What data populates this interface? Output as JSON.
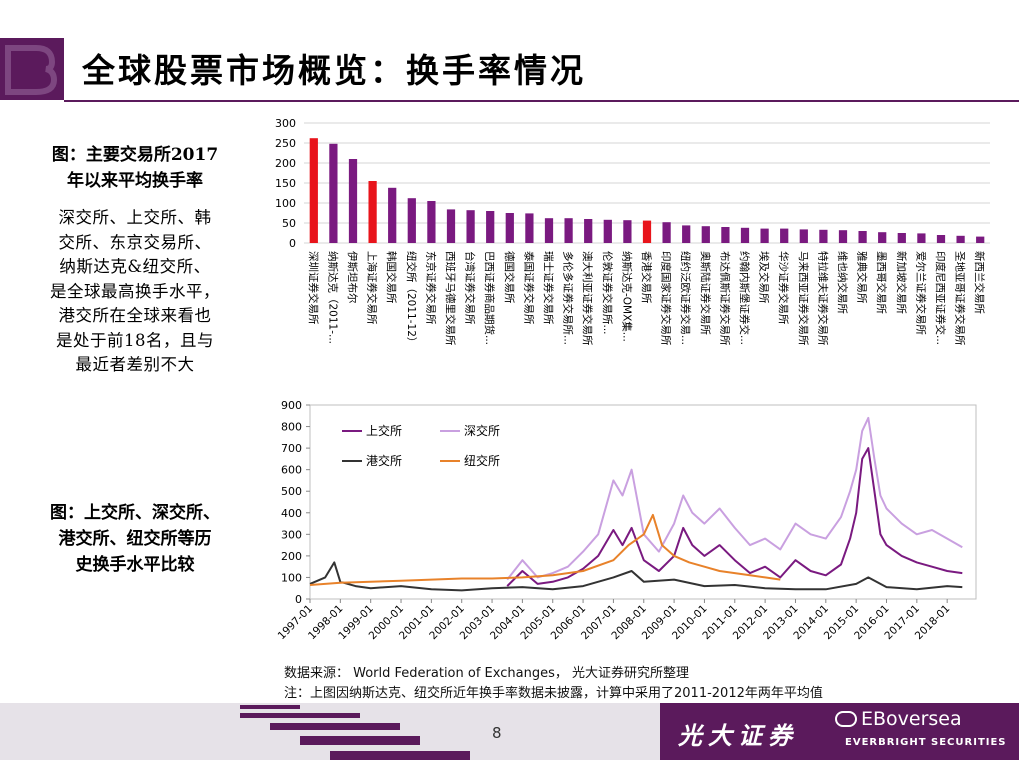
{
  "title": "全球股票市场概览：换手率情况",
  "caption1": [
    "图：主要交易所2017",
    "年以来平均换手率"
  ],
  "description": [
    "深交所、上交所、韩",
    "交所、东京交易所、",
    "纳斯达克&纽交所、",
    "是全球最高换手水平，",
    "港交所在全球来看也",
    "是处于前18名，且与",
    "最近者差别不大"
  ],
  "caption2": [
    "图：上交所、深交所、",
    "港交所、纽交所等历",
    "史换手水平比较"
  ],
  "source_text": "数据来源： World Federation of Exchanges， 光大证券研究所整理",
  "note_text": "注：上图因纳斯达克、纽交所近年换手率数据未披露，计算中采用了2011-2012年两年平均值",
  "page_number": "8",
  "brand_cn": "光大证券",
  "brand_en": "EVERBRIGHT SECURITIES",
  "wechat_label": "EBoversea",
  "colors": {
    "purple": "#7a1a80",
    "red": "#e8141b",
    "lilac": "#c9a0e0",
    "black": "#333333",
    "orange": "#e8822a",
    "brand": "#5b1a5c"
  },
  "chart_data": [
    {
      "type": "bar",
      "ylim": [
        0,
        300
      ],
      "yticks": [
        0,
        50,
        100,
        150,
        200,
        250,
        300
      ],
      "categories": [
        "深圳证券交易所",
        "纳斯达克（2011-...",
        "伊斯坦布尔",
        "上海证券交易所",
        "韩国交易所",
        "纽交所（2011-12）",
        "东京证券交易所",
        "西班牙马德里交易所",
        "台湾证券交易所",
        "巴西证券商品期货...",
        "德国交易所",
        "泰国证券交易所",
        "瑞士证券交易所",
        "多伦多证券交易所...",
        "澳大利亚证券交易所",
        "伦敦证券交易所...",
        "纳斯达克-OMX集...",
        "香港交易所",
        "印度国家证券交易所",
        "纽约泛欧证券交易...",
        "奥斯陆证券交易所",
        "布达佩斯证券交易所",
        "约翰内斯堡证券交...",
        "埃及交易所",
        "华沙证券交易所",
        "马来西亚证券交易所",
        "特拉维夫证券交易所",
        "维也纳交易所",
        "雅典交易所",
        "墨西哥交易所",
        "新加坡交易所",
        "爱尔兰证券交易所",
        "印度尼西亚证券交...",
        "圣地亚哥证券交易所",
        "新西兰交易所"
      ],
      "values": [
        262,
        248,
        210,
        155,
        138,
        112,
        105,
        84,
        82,
        80,
        75,
        74,
        62,
        62,
        60,
        58,
        57,
        56,
        52,
        44,
        42,
        40,
        38,
        36,
        36,
        34,
        33,
        32,
        30,
        27,
        25,
        24,
        20,
        18,
        16
      ],
      "highlight": [
        "深圳证券交易所",
        "上海证券交易所",
        "香港交易所"
      ]
    },
    {
      "type": "line",
      "ylim": [
        0,
        900
      ],
      "yticks": [
        0,
        100,
        200,
        300,
        400,
        500,
        600,
        700,
        800,
        900
      ],
      "xticks": [
        "1997-01",
        "1998-01",
        "1999-01",
        "2000-01",
        "2001-01",
        "2002-01",
        "2003-01",
        "2004-01",
        "2005-01",
        "2006-01",
        "2007-01",
        "2008-01",
        "2009-01",
        "2010-01",
        "2011-01",
        "2012-01",
        "2013-01",
        "2014-01",
        "2015-01",
        "2016-01",
        "2017-01",
        "2018-01"
      ],
      "legend_placement": "top-left",
      "series": [
        {
          "name": "上交所",
          "color": "#7a1a80",
          "x": [
            2003.5,
            2004.0,
            2004.5,
            2005.0,
            2005.5,
            2006.0,
            2006.5,
            2007.0,
            2007.3,
            2007.6,
            2008.0,
            2008.5,
            2009.0,
            2009.3,
            2009.6,
            2010.0,
            2010.5,
            2011.0,
            2011.5,
            2012.0,
            2012.5,
            2013.0,
            2013.5,
            2014.0,
            2014.5,
            2014.8,
            2015.0,
            2015.2,
            2015.4,
            2015.6,
            2015.8,
            2016.0,
            2016.5,
            2017.0,
            2017.5,
            2018.0,
            2018.5
          ],
          "y": [
            60,
            130,
            70,
            80,
            100,
            140,
            200,
            320,
            250,
            330,
            180,
            130,
            200,
            330,
            250,
            200,
            250,
            180,
            120,
            150,
            100,
            180,
            130,
            110,
            160,
            280,
            400,
            650,
            700,
            500,
            300,
            250,
            200,
            170,
            150,
            130,
            120
          ]
        },
        {
          "name": "深交所",
          "color": "#c9a0e0",
          "x": [
            2003.5,
            2004.0,
            2004.5,
            2005.0,
            2005.5,
            2006.0,
            2006.5,
            2007.0,
            2007.3,
            2007.6,
            2008.0,
            2008.5,
            2009.0,
            2009.3,
            2009.6,
            2010.0,
            2010.5,
            2011.0,
            2011.5,
            2012.0,
            2012.5,
            2013.0,
            2013.5,
            2014.0,
            2014.5,
            2014.8,
            2015.0,
            2015.2,
            2015.4,
            2015.6,
            2015.8,
            2016.0,
            2016.5,
            2017.0,
            2017.5,
            2018.0,
            2018.5
          ],
          "y": [
            90,
            180,
            100,
            120,
            150,
            220,
            300,
            550,
            480,
            600,
            300,
            220,
            350,
            480,
            400,
            350,
            420,
            330,
            250,
            280,
            230,
            350,
            300,
            280,
            380,
            500,
            600,
            780,
            840,
            650,
            480,
            420,
            350,
            300,
            320,
            280,
            240
          ]
        },
        {
          "name": "港交所",
          "color": "#333333",
          "x": [
            1997.0,
            1997.5,
            1997.8,
            1998.0,
            1998.5,
            1999.0,
            2000.0,
            2001.0,
            2002.0,
            2003.0,
            2004.0,
            2005.0,
            2006.0,
            2007.0,
            2007.6,
            2008.0,
            2009.0,
            2010.0,
            2011.0,
            2012.0,
            2013.0,
            2014.0,
            2015.0,
            2015.4,
            2016.0,
            2017.0,
            2018.0,
            2018.5
          ],
          "y": [
            70,
            100,
            170,
            80,
            60,
            50,
            60,
            45,
            40,
            50,
            55,
            45,
            60,
            100,
            130,
            80,
            90,
            60,
            65,
            50,
            45,
            45,
            70,
            100,
            55,
            45,
            60,
            55
          ]
        },
        {
          "name": "纽交所",
          "color": "#e8822a",
          "x": [
            1997.0,
            1998.0,
            1999.0,
            2000.0,
            2001.0,
            2002.0,
            2003.0,
            2004.0,
            2005.0,
            2006.0,
            2007.0,
            2007.5,
            2008.0,
            2008.3,
            2008.6,
            2009.0,
            2009.5,
            2010.0,
            2010.5,
            2011.0,
            2011.5,
            2012.0,
            2012.5
          ],
          "y": [
            65,
            75,
            80,
            85,
            90,
            95,
            95,
            100,
            110,
            130,
            180,
            250,
            300,
            390,
            250,
            200,
            170,
            150,
            130,
            120,
            110,
            100,
            90
          ]
        }
      ]
    }
  ]
}
